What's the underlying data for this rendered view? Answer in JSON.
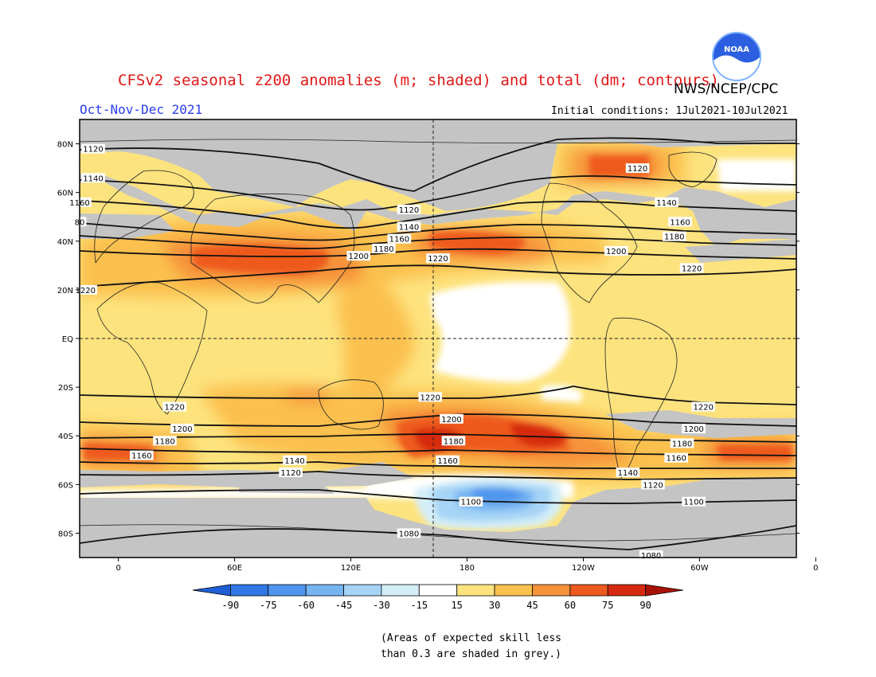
{
  "title": "CFSv2 seasonal z200 anomalies (m; shaded) and total (dm; contours)",
  "agency": "NWS/NCEP/CPC",
  "logo_text": "NOAA",
  "season": "Oct-Nov-Dec 2021",
  "initial_conditions": "Initial conditions: 1Jul2021-10Jul2021",
  "note_line1": "(Areas of expected skill less",
  "note_line2": "than 0.3 are shaded in grey.)",
  "lat_labels": [
    "80N",
    "60N",
    "40N",
    "20N",
    "EQ",
    "20S",
    "40S",
    "60S",
    "80S"
  ],
  "lon_labels": [
    "0",
    "60E",
    "120E",
    "180",
    "120W",
    "60W",
    "0"
  ],
  "colorbar": {
    "labels": [
      "-90",
      "-75",
      "-60",
      "-45",
      "-30",
      "-15",
      "15",
      "30",
      "45",
      "60",
      "75",
      "90"
    ],
    "colors": [
      "#1f5fd6",
      "#2f78e6",
      "#4f95ee",
      "#77b4f2",
      "#a6d4f6",
      "#d4eef8",
      "#ffffff",
      "#fde37e",
      "#fbc04e",
      "#f6923a",
      "#ee5a1e",
      "#d62a10",
      "#a81206"
    ]
  },
  "contour_labels": [
    {
      "text": "1120",
      "lon": -13,
      "lat": 78
    },
    {
      "text": "1140",
      "lon": -13,
      "lat": 66
    },
    {
      "text": "1160",
      "lon": -20,
      "lat": 56
    },
    {
      "text": "80",
      "lon": -20,
      "lat": 48
    },
    {
      "text": "1220",
      "lon": -17,
      "lat": 20
    },
    {
      "text": "1120",
      "lon": 150,
      "lat": 53
    },
    {
      "text": "1140",
      "lon": 150,
      "lat": 46
    },
    {
      "text": "1160",
      "lon": 145,
      "lat": 41
    },
    {
      "text": "1180",
      "lon": 137,
      "lat": 37
    },
    {
      "text": "1200",
      "lon": 124,
      "lat": 34
    },
    {
      "text": "1220",
      "lon": 165,
      "lat": 33
    },
    {
      "text": "1120",
      "lon": 268,
      "lat": 70
    },
    {
      "text": "1140",
      "lon": 283,
      "lat": 56
    },
    {
      "text": "1160",
      "lon": 290,
      "lat": 48
    },
    {
      "text": "1180",
      "lon": 287,
      "lat": 42
    },
    {
      "text": "1200",
      "lon": 257,
      "lat": 36
    },
    {
      "text": "1220",
      "lon": 296,
      "lat": 29
    },
    {
      "text": "1220",
      "lon": 29,
      "lat": -28
    },
    {
      "text": "1200",
      "lon": 33,
      "lat": -37
    },
    {
      "text": "1180",
      "lon": 24,
      "lat": -42
    },
    {
      "text": "1160",
      "lon": 12,
      "lat": -48
    },
    {
      "text": "1140",
      "lon": 91,
      "lat": -50
    },
    {
      "text": "1120",
      "lon": 89,
      "lat": -55
    },
    {
      "text": "1220",
      "lon": 161,
      "lat": -24
    },
    {
      "text": "1200",
      "lon": 172,
      "lat": -33
    },
    {
      "text": "1180",
      "lon": 173,
      "lat": -42
    },
    {
      "text": "1160",
      "lon": 170,
      "lat": -50
    },
    {
      "text": "1100",
      "lon": 182,
      "lat": -67
    },
    {
      "text": "1080",
      "lon": 150,
      "lat": -80
    },
    {
      "text": "1080",
      "lon": 275,
      "lat": -89
    },
    {
      "text": "1140",
      "lon": 263,
      "lat": -55
    },
    {
      "text": "1120",
      "lon": 276,
      "lat": -60
    },
    {
      "text": "1100",
      "lon": 297,
      "lat": -67
    },
    {
      "text": "1160",
      "lon": 288,
      "lat": -49
    },
    {
      "text": "1180",
      "lon": 291,
      "lat": -43
    },
    {
      "text": "1200",
      "lon": 297,
      "lat": -37
    },
    {
      "text": "1220",
      "lon": 302,
      "lat": -28
    }
  ]
}
